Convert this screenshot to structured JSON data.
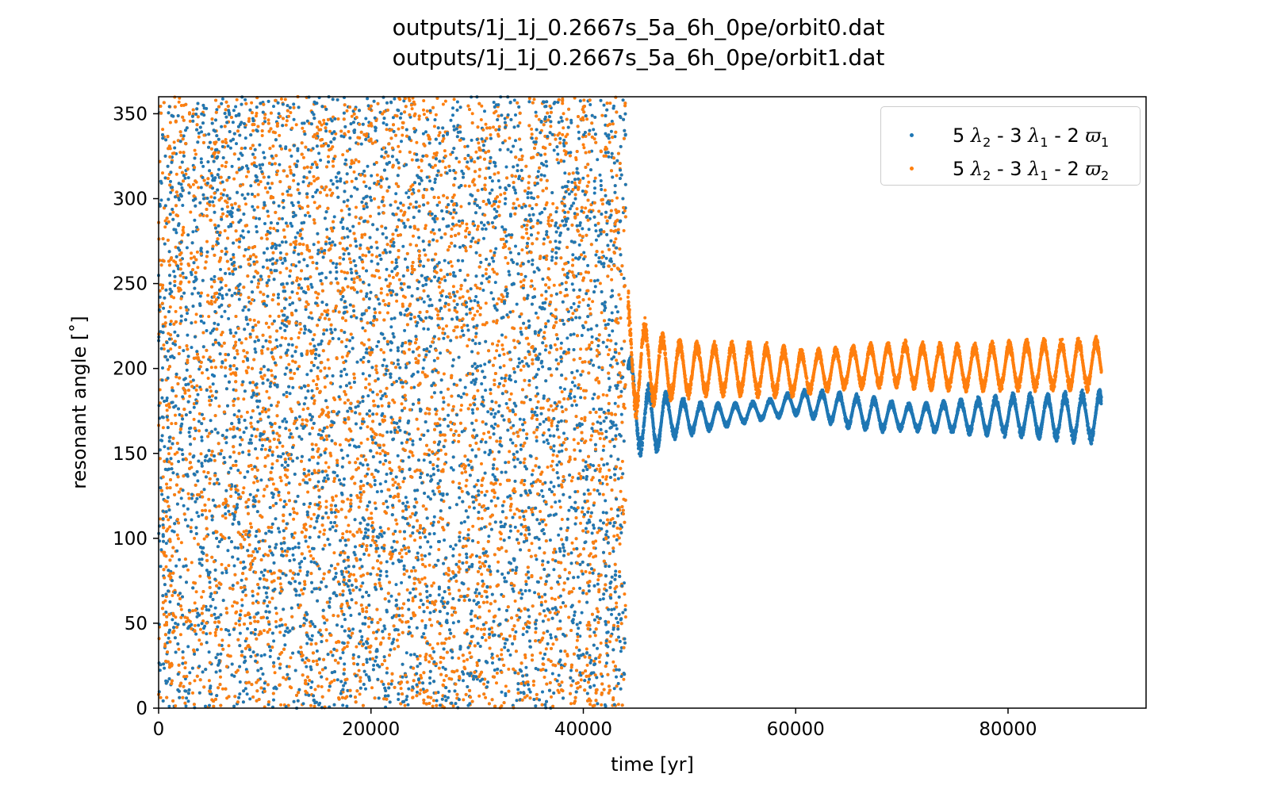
{
  "chart_data": {
    "type": "scatter",
    "title_lines": [
      "outputs/1j_1j_0.2667s_5a_6h_0pe/orbit0.dat",
      "outputs/1j_1j_0.2667s_5a_6h_0pe/orbit1.dat"
    ],
    "xlabel": "time [yr]",
    "ylabel": "resonant angle [˚]",
    "xlim": [
      0,
      93000
    ],
    "ylim": [
      0,
      360
    ],
    "xticks": [
      0,
      20000,
      40000,
      60000,
      80000
    ],
    "yticks": [
      0,
      50,
      100,
      150,
      200,
      250,
      300,
      350
    ],
    "grid": false,
    "legend_position": "top-right",
    "series": [
      {
        "legend": {
          "coef1": "5",
          "lam2": "λ",
          "lam2_sub": "2",
          "coef2": "3",
          "lam1": "λ",
          "lam1_sub": "1",
          "coef3": "2",
          "varpi": "ϖ",
          "varpi_sub": "1"
        },
        "color": "#1f77b4",
        "circulating": {
          "x_range": [
            0,
            44000
          ],
          "y_range": [
            0,
            360
          ]
        },
        "librating_envelope": {
          "x": [
            44200,
            45000,
            46000,
            48000,
            50000,
            52000,
            55000,
            58000,
            60000,
            62000,
            65000,
            68000,
            70000,
            72000,
            75000,
            78000,
            80000,
            83000,
            86000,
            88800
          ],
          "y_low": [
            180,
            150,
            142,
            157,
            160,
            163,
            167,
            170,
            172,
            169,
            164,
            162,
            163,
            162,
            161,
            160,
            159,
            158,
            156,
            155
          ],
          "y_high": [
            212,
            200,
            192,
            186,
            182,
            180,
            180,
            183,
            188,
            188,
            186,
            183,
            180,
            180,
            182,
            184,
            186,
            186,
            187,
            188
          ]
        }
      },
      {
        "legend": {
          "coef1": "5",
          "lam2": "λ",
          "lam2_sub": "2",
          "coef2": "3",
          "lam1": "λ",
          "lam1_sub": "1",
          "coef3": "2",
          "varpi": "ϖ",
          "varpi_sub": "2"
        },
        "color": "#ff7f0e",
        "circulating": {
          "x_range": [
            0,
            44000
          ],
          "y_range": [
            0,
            360
          ]
        },
        "librating_envelope": {
          "x": [
            44200,
            45000,
            46000,
            48000,
            50000,
            52000,
            55000,
            58000,
            60000,
            62000,
            65000,
            68000,
            70000,
            72000,
            75000,
            78000,
            80000,
            83000,
            86000,
            88800
          ],
          "y_low": [
            160,
            170,
            176,
            180,
            182,
            183,
            183,
            182,
            183,
            185,
            187,
            188,
            188,
            187,
            186,
            186,
            186,
            186,
            186,
            186
          ],
          "y_high": [
            248,
            238,
            228,
            220,
            217,
            216,
            217,
            215,
            212,
            212,
            214,
            216,
            217,
            216,
            215,
            216,
            217,
            218,
            219,
            219
          ]
        }
      }
    ]
  }
}
